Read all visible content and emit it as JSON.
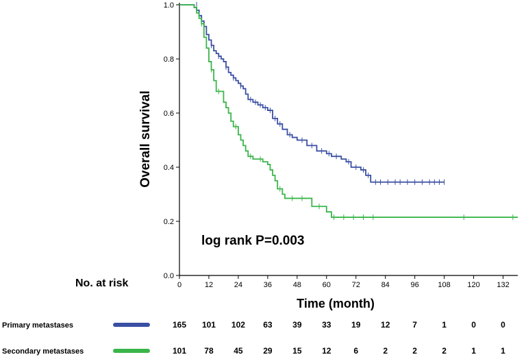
{
  "chart_data": {
    "type": "line",
    "subtype": "kaplan-meier",
    "ylabel": "Overall survival",
    "xlabel": "Time (month)",
    "xlim": [
      0,
      138
    ],
    "ylim": [
      0,
      1.0
    ],
    "x_ticks": [
      0,
      12,
      24,
      36,
      48,
      60,
      72,
      84,
      96,
      108,
      120,
      132
    ],
    "y_ticks": [
      "0.0",
      "0.2",
      "0.4",
      "0.6",
      "0.8",
      "1.0"
    ],
    "annotation": "log rank P=0.003",
    "series": [
      {
        "name": "Primary metastases",
        "color": "#3a4fa3",
        "steps": [
          [
            0,
            1.0
          ],
          [
            5,
            1.0
          ],
          [
            6,
            0.99
          ],
          [
            7,
            0.98
          ],
          [
            8,
            0.96
          ],
          [
            9,
            0.94
          ],
          [
            10,
            0.92
          ],
          [
            11,
            0.89
          ],
          [
            12,
            0.87
          ],
          [
            13,
            0.85
          ],
          [
            14,
            0.83
          ],
          [
            15,
            0.82
          ],
          [
            16,
            0.81
          ],
          [
            17,
            0.8
          ],
          [
            18,
            0.79
          ],
          [
            19,
            0.77
          ],
          [
            20,
            0.75
          ],
          [
            21,
            0.74
          ],
          [
            22,
            0.73
          ],
          [
            23,
            0.72
          ],
          [
            24,
            0.71
          ],
          [
            25,
            0.7
          ],
          [
            26,
            0.69
          ],
          [
            27,
            0.67
          ],
          [
            28,
            0.65
          ],
          [
            30,
            0.64
          ],
          [
            32,
            0.63
          ],
          [
            34,
            0.62
          ],
          [
            36,
            0.61
          ],
          [
            38,
            0.58
          ],
          [
            40,
            0.56
          ],
          [
            42,
            0.54
          ],
          [
            44,
            0.52
          ],
          [
            46,
            0.51
          ],
          [
            48,
            0.5
          ],
          [
            52,
            0.48
          ],
          [
            56,
            0.46
          ],
          [
            60,
            0.45
          ],
          [
            62,
            0.44
          ],
          [
            66,
            0.43
          ],
          [
            68,
            0.42
          ],
          [
            70,
            0.4
          ],
          [
            74,
            0.39
          ],
          [
            76,
            0.37
          ],
          [
            78,
            0.345
          ],
          [
            108,
            0.345
          ]
        ],
        "censors": [
          [
            7,
            1.0
          ],
          [
            10,
            0.92
          ],
          [
            13,
            0.85
          ],
          [
            16,
            0.81
          ],
          [
            19,
            0.77
          ],
          [
            22,
            0.73
          ],
          [
            25,
            0.7
          ],
          [
            29,
            0.65
          ],
          [
            31,
            0.64
          ],
          [
            33,
            0.63
          ],
          [
            35,
            0.62
          ],
          [
            37,
            0.61
          ],
          [
            39,
            0.58
          ],
          [
            41,
            0.56
          ],
          [
            45,
            0.52
          ],
          [
            50,
            0.5
          ],
          [
            54,
            0.48
          ],
          [
            58,
            0.46
          ],
          [
            61,
            0.45
          ],
          [
            64,
            0.44
          ],
          [
            69,
            0.42
          ],
          [
            72,
            0.4
          ],
          [
            75,
            0.39
          ],
          [
            77,
            0.37
          ],
          [
            80,
            0.345
          ],
          [
            82,
            0.345
          ],
          [
            85,
            0.345
          ],
          [
            88,
            0.345
          ],
          [
            90,
            0.345
          ],
          [
            93,
            0.345
          ],
          [
            96,
            0.345
          ],
          [
            99,
            0.345
          ],
          [
            102,
            0.345
          ],
          [
            104,
            0.345
          ],
          [
            106,
            0.345
          ],
          [
            108,
            0.345
          ]
        ]
      },
      {
        "name": "Secondary metastases",
        "color": "#3ab54a",
        "steps": [
          [
            0,
            1.0
          ],
          [
            5,
            1.0
          ],
          [
            6,
            0.99
          ],
          [
            7,
            0.97
          ],
          [
            8,
            0.95
          ],
          [
            9,
            0.93
          ],
          [
            10,
            0.88
          ],
          [
            11,
            0.84
          ],
          [
            12,
            0.79
          ],
          [
            13,
            0.76
          ],
          [
            14,
            0.72
          ],
          [
            15,
            0.68
          ],
          [
            18,
            0.64
          ],
          [
            19,
            0.62
          ],
          [
            20,
            0.6
          ],
          [
            21,
            0.57
          ],
          [
            22,
            0.55
          ],
          [
            24,
            0.52
          ],
          [
            25,
            0.5
          ],
          [
            26,
            0.48
          ],
          [
            27,
            0.46
          ],
          [
            28,
            0.44
          ],
          [
            30,
            0.43
          ],
          [
            34,
            0.42
          ],
          [
            36,
            0.41
          ],
          [
            37,
            0.39
          ],
          [
            38,
            0.37
          ],
          [
            39,
            0.35
          ],
          [
            40,
            0.32
          ],
          [
            42,
            0.3
          ],
          [
            43,
            0.285
          ],
          [
            54,
            0.255
          ],
          [
            60,
            0.235
          ],
          [
            62,
            0.215
          ],
          [
            138,
            0.215
          ]
        ],
        "censors": [
          [
            9,
            0.93
          ],
          [
            13,
            0.76
          ],
          [
            16,
            0.68
          ],
          [
            23,
            0.55
          ],
          [
            29,
            0.44
          ],
          [
            33,
            0.43
          ],
          [
            41,
            0.32
          ],
          [
            46,
            0.285
          ],
          [
            50,
            0.285
          ],
          [
            57,
            0.255
          ],
          [
            63,
            0.215
          ],
          [
            67,
            0.215
          ],
          [
            71,
            0.215
          ],
          [
            75,
            0.215
          ],
          [
            79,
            0.215
          ],
          [
            116,
            0.215
          ],
          [
            136,
            0.215
          ]
        ]
      }
    ]
  },
  "risk_table": {
    "title": "No. at risk",
    "rows": [
      {
        "label": "Primary metastases",
        "color": "#3a4fa3",
        "counts": [
          "165",
          "101",
          "102",
          "63",
          "39",
          "33",
          "19",
          "12",
          "7",
          "1",
          "0",
          "0"
        ]
      },
      {
        "label": "Secondary metastases",
        "color": "#3ab54a",
        "counts": [
          "101",
          "78",
          "45",
          "29",
          "15",
          "12",
          "6",
          "2",
          "2",
          "2",
          "1",
          "1"
        ]
      }
    ]
  }
}
